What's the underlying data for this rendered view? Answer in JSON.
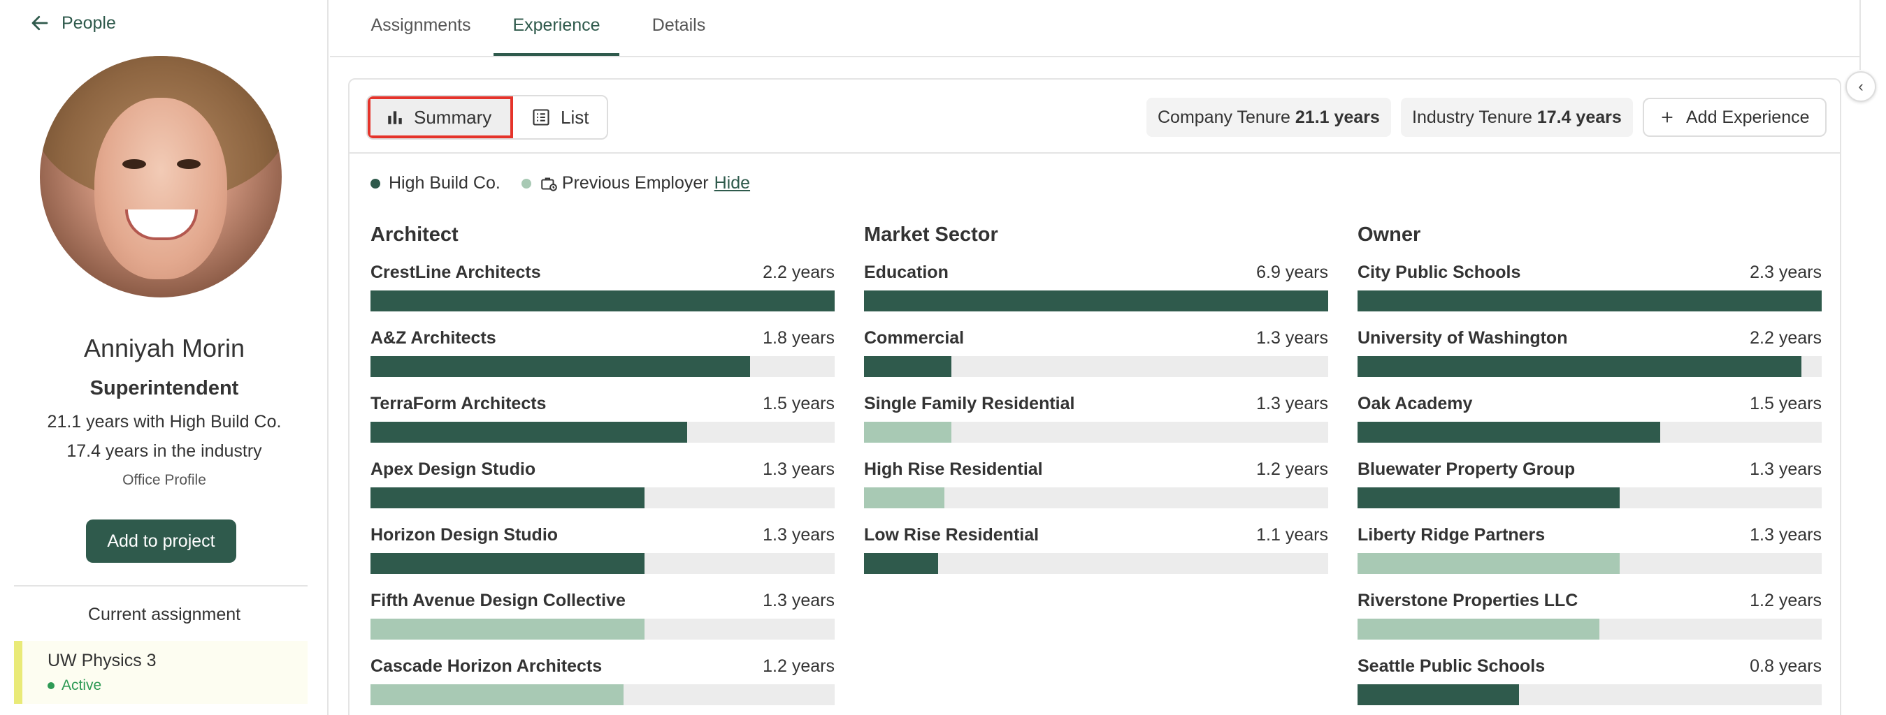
{
  "sidebar": {
    "back_label": "People",
    "name": "Anniyah Morin",
    "role": "Superintendent",
    "company_years": "21.1 years with High Build Co.",
    "industry_years": "17.4 years in the industry",
    "office_profile": "Office Profile",
    "add_button": "Add to project",
    "current_assignment_title": "Current assignment",
    "assignment": {
      "name": "UW Physics 3",
      "status": "Active"
    }
  },
  "tabs": [
    {
      "label": "Assignments"
    },
    {
      "label": "Experience"
    },
    {
      "label": "Details"
    }
  ],
  "toolbar": {
    "summary_label": "Summary",
    "list_label": "List",
    "company_tenure_label": "Company Tenure",
    "company_tenure_value": "21.1 years",
    "industry_tenure_label": "Industry Tenure",
    "industry_tenure_value": "17.4 years",
    "add_experience_label": "Add Experience"
  },
  "legend": {
    "company_label": "High Build Co.",
    "previous_label": "Previous Employer",
    "hide_label": "Hide"
  },
  "colors": {
    "company": "#2f5a4c",
    "previous": "#a8c9b4",
    "accent": "#2f5a4c",
    "highlight": "#e5332a"
  },
  "columns": [
    {
      "title": "Architect",
      "rows": [
        {
          "label": "CrestLine Architects",
          "value": "2.2 years",
          "years": 2.2,
          "type": "company"
        },
        {
          "label": "A&Z Architects",
          "value": "1.8 years",
          "years": 1.8,
          "type": "company"
        },
        {
          "label": "TerraForm Architects",
          "value": "1.5 years",
          "years": 1.5,
          "type": "company"
        },
        {
          "label": "Apex Design Studio",
          "value": "1.3 years",
          "years": 1.3,
          "type": "company"
        },
        {
          "label": "Horizon Design Studio",
          "value": "1.3 years",
          "years": 1.3,
          "type": "company"
        },
        {
          "label": "Fifth Avenue Design Collective",
          "value": "1.3 years",
          "years": 1.3,
          "type": "previous"
        },
        {
          "label": "Cascade Horizon Architects",
          "value": "1.2 years",
          "years": 1.2,
          "type": "previous"
        }
      ]
    },
    {
      "title": "Market Sector",
      "rows": [
        {
          "label": "Education",
          "value": "6.9 years",
          "years": 6.9,
          "type": "company"
        },
        {
          "label": "Commercial",
          "value": "1.3 years",
          "years": 1.3,
          "type": "company"
        },
        {
          "label": "Single Family Residential",
          "value": "1.3 years",
          "years": 1.3,
          "type": "previous"
        },
        {
          "label": "High Rise Residential",
          "value": "1.2 years",
          "years": 1.2,
          "type": "previous"
        },
        {
          "label": "Low Rise Residential",
          "value": "1.1 years",
          "years": 1.1,
          "type": "company"
        }
      ]
    },
    {
      "title": "Owner",
      "rows": [
        {
          "label": "City Public Schools",
          "value": "2.3 years",
          "years": 2.3,
          "type": "company"
        },
        {
          "label": "University of Washington",
          "value": "2.2 years",
          "years": 2.2,
          "type": "company"
        },
        {
          "label": "Oak Academy",
          "value": "1.5 years",
          "years": 1.5,
          "type": "company"
        },
        {
          "label": "Bluewater Property Group",
          "value": "1.3 years",
          "years": 1.3,
          "type": "company"
        },
        {
          "label": "Liberty Ridge Partners",
          "value": "1.3 years",
          "years": 1.3,
          "type": "previous"
        },
        {
          "label": "Riverstone Properties LLC",
          "value": "1.2 years",
          "years": 1.2,
          "type": "previous"
        },
        {
          "label": "Seattle Public Schools",
          "value": "0.8 years",
          "years": 0.8,
          "type": "company"
        }
      ]
    }
  ]
}
